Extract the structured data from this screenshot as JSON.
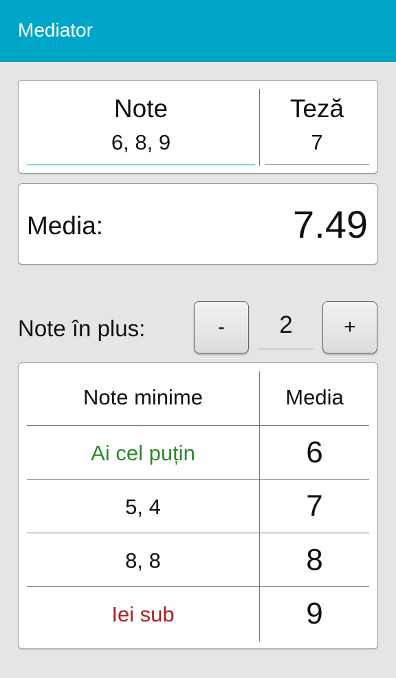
{
  "app": {
    "title": "Mediator",
    "accent_color": "#00a6c8"
  },
  "inputs": {
    "note_label": "Note",
    "note_value": "6, 8, 9",
    "teza_label": "Teză",
    "teza_value": "7"
  },
  "result": {
    "label": "Media:",
    "value": "7.49"
  },
  "extra": {
    "label": "Note în plus:",
    "minus_label": "-",
    "plus_label": "+",
    "count": "2"
  },
  "table": {
    "headers": [
      "Note minime",
      "Media"
    ],
    "rows": [
      {
        "note": "Ai cel puțin",
        "media": "6",
        "color": "#2a8a2a"
      },
      {
        "note": "5, 4",
        "media": "7",
        "color": "#111111"
      },
      {
        "note": "8, 8",
        "media": "8",
        "color": "#111111"
      },
      {
        "note": "Iei sub",
        "media": "9",
        "color": "#b02020"
      }
    ]
  }
}
